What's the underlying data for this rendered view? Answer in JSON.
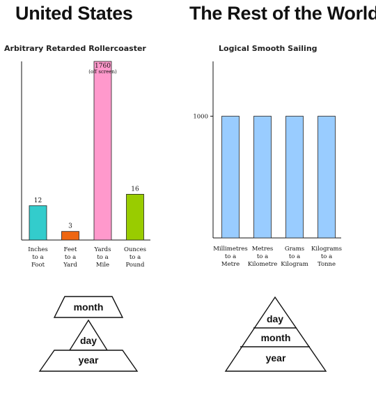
{
  "headings": {
    "left": "United States",
    "right": "The Rest of the World"
  },
  "chart_data": [
    {
      "type": "bar",
      "title": "Arbitrary Retarded Rollercoaster",
      "xlabel": "",
      "ylabel": "",
      "categories": [
        [
          "Inches",
          "to a",
          "Foot"
        ],
        [
          "Feet",
          "to a",
          "Yard"
        ],
        [
          "Yards",
          "to a",
          "Mile"
        ],
        [
          "Ounces",
          "to a",
          "Pound"
        ]
      ],
      "values": [
        12,
        3,
        1760,
        16
      ],
      "colors": [
        "#33cccc",
        "#ee6611",
        "#ff99cc",
        "#99cc00"
      ],
      "annotations": [
        {
          "category_index": 2,
          "text": "(off screen)"
        }
      ],
      "clipped_max": 50,
      "grid": false
    },
    {
      "type": "bar",
      "title": "Logical Smooth Sailing",
      "xlabel": "",
      "ylabel": "",
      "categories": [
        [
          "Millimetres",
          "to a",
          "Metre"
        ],
        [
          "Metres",
          "to a",
          "Kilometre"
        ],
        [
          "Grams",
          "to a",
          "Kilogram"
        ],
        [
          "Kilograms",
          "to a",
          "Tonne"
        ]
      ],
      "values": [
        1000,
        1000,
        1000,
        1000
      ],
      "colors": [
        "#99ccff",
        "#99ccff",
        "#99ccff",
        "#99ccff"
      ],
      "y_ticks": [
        1000
      ],
      "ylim": [
        0,
        1450
      ],
      "grid": false
    }
  ],
  "pyramids": {
    "left": {
      "top": "month",
      "middle": "day",
      "bottom": "year"
    },
    "right": {
      "top": "day",
      "middle": "month",
      "bottom": "year"
    }
  }
}
